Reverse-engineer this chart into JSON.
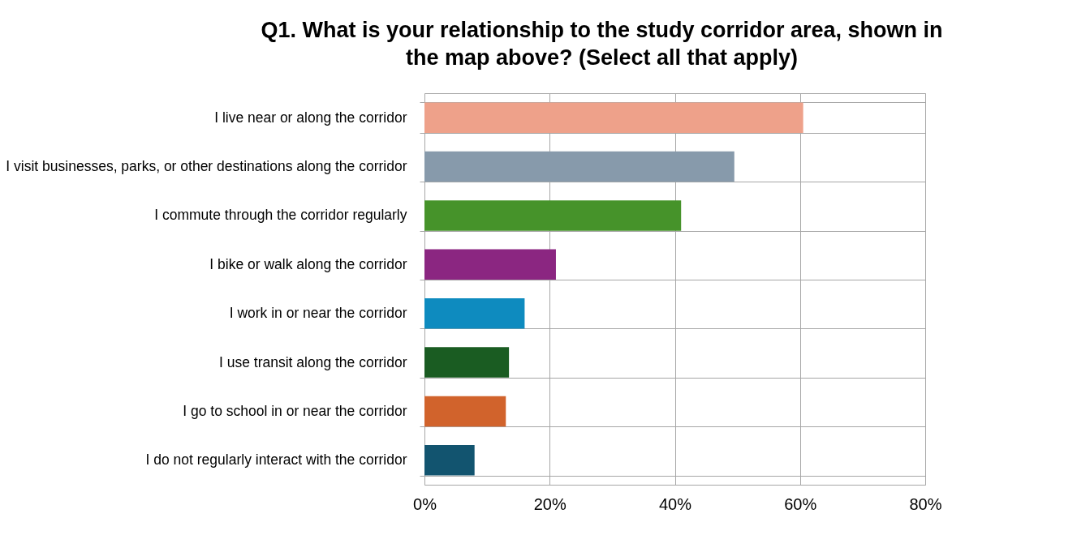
{
  "chart_data": {
    "type": "bar",
    "orientation": "horizontal",
    "title": "Q1. What is your relationship to the study corridor area, shown in the map above? (Select all that apply)",
    "categories": [
      "I live near or along the corridor",
      "I visit businesses, parks, or other destinations along the corridor",
      "I commute through the corridor regularly",
      "I bike or walk along the corridor",
      "I work in or near the corridor",
      "I use transit along the corridor",
      "I go to school in or near the corridor",
      "I do not regularly interact with the corridor"
    ],
    "values": [
      60.5,
      49.5,
      41,
      21,
      16,
      13.5,
      13,
      8
    ],
    "colors": [
      "#eea18a",
      "#879aab",
      "#46932a",
      "#8b2681",
      "#0e8bbf",
      "#1a5c22",
      "#d1632c",
      "#12546f"
    ],
    "xlim": [
      0,
      80
    ],
    "xticks": [
      {
        "value": 0,
        "label": "0%"
      },
      {
        "value": 20,
        "label": "20%"
      },
      {
        "value": 40,
        "label": "40%"
      },
      {
        "value": 60,
        "label": "60%"
      },
      {
        "value": 80,
        "label": "80%"
      }
    ],
    "grid": true
  }
}
